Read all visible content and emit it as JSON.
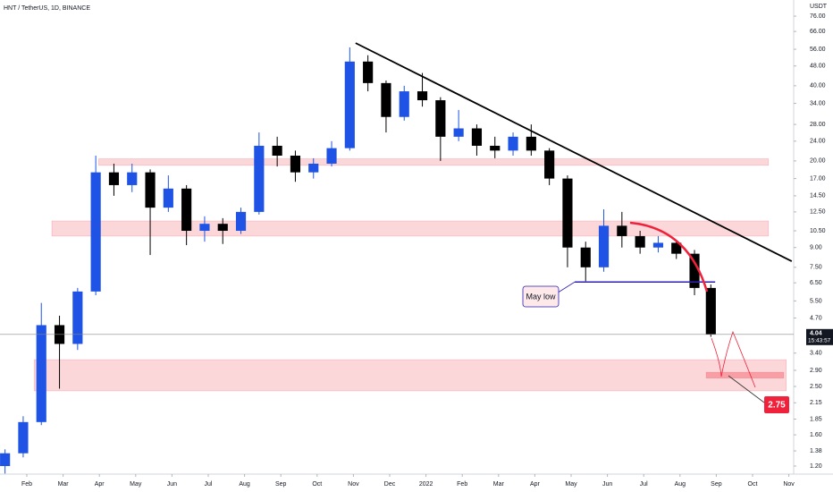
{
  "chart_data": {
    "type": "candlestick",
    "title": "HNT / TetherUS, 1D, BINANCE",
    "y_axis_label": "USDT",
    "log_scale": true,
    "grid": false,
    "up_color": "#1e53e5",
    "down_color": "#000000",
    "xlim": [
      -0.739,
      21.133
    ],
    "xticks": [
      {
        "value": 0,
        "label": "Feb"
      },
      {
        "value": 1,
        "label": "Mar"
      },
      {
        "value": 2,
        "label": "Apr"
      },
      {
        "value": 3,
        "label": "May"
      },
      {
        "value": 4,
        "label": "Jun"
      },
      {
        "value": 5,
        "label": "Jul"
      },
      {
        "value": 6,
        "label": "Aug"
      },
      {
        "value": 7,
        "label": "Sep"
      },
      {
        "value": 8,
        "label": "Oct"
      },
      {
        "value": 9,
        "label": "Nov"
      },
      {
        "value": 10,
        "label": "Dec"
      },
      {
        "value": 11,
        "label": "2022"
      },
      {
        "value": 12,
        "label": "Feb"
      },
      {
        "value": 13,
        "label": "Mar"
      },
      {
        "value": 14,
        "label": "Apr"
      },
      {
        "value": 15,
        "label": "May"
      },
      {
        "value": 16,
        "label": "Jun"
      },
      {
        "value": 17,
        "label": "Jul"
      },
      {
        "value": 18,
        "label": "Aug"
      },
      {
        "value": 19,
        "label": "Sep"
      },
      {
        "value": 20,
        "label": "Oct"
      },
      {
        "value": 21,
        "label": "Nov"
      }
    ],
    "ylim": [
      1.114,
      88.2
    ],
    "yticks": [
      {
        "value": 76,
        "label": "76.00"
      },
      {
        "value": 66,
        "label": "66.00"
      },
      {
        "value": 56,
        "label": "56.00"
      },
      {
        "value": 48,
        "label": "48.00"
      },
      {
        "value": 40,
        "label": "40.00"
      },
      {
        "value": 34,
        "label": "34.00"
      },
      {
        "value": 28,
        "label": "28.00"
      },
      {
        "value": 24,
        "label": "24.00"
      },
      {
        "value": 20,
        "label": "20.00"
      },
      {
        "value": 17,
        "label": "17.00"
      },
      {
        "value": 14.5,
        "label": "14.50"
      },
      {
        "value": 12.5,
        "label": "12.50"
      },
      {
        "value": 10.5,
        "label": "10.50"
      },
      {
        "value": 9,
        "label": "9.00"
      },
      {
        "value": 7.5,
        "label": "7.50"
      },
      {
        "value": 6.5,
        "label": "6.50"
      },
      {
        "value": 5.5,
        "label": "5.50"
      },
      {
        "value": 4.7,
        "label": "4.70"
      },
      {
        "value": 3.4,
        "label": "3.40"
      },
      {
        "value": 2.9,
        "label": "2.90"
      },
      {
        "value": 2.5,
        "label": "2.50"
      },
      {
        "value": 2.15,
        "label": "2.15"
      },
      {
        "value": 1.85,
        "label": "1.85"
      },
      {
        "value": 1.6,
        "label": "1.60"
      },
      {
        "value": 1.38,
        "label": "1.38"
      },
      {
        "value": 1.2,
        "label": "1.20"
      }
    ],
    "last_price": 4.04,
    "countdown": "15:43:57",
    "x": [
      -0.6,
      -0.1,
      0.4,
      0.9,
      1.4,
      1.9,
      2.4,
      2.9,
      3.4,
      3.9,
      4.4,
      4.9,
      5.4,
      5.9,
      6.4,
      6.9,
      7.4,
      7.9,
      8.4,
      8.9,
      9.4,
      9.9,
      10.4,
      10.9,
      11.4,
      11.9,
      12.4,
      12.9,
      13.4,
      13.9,
      14.4,
      14.9,
      15.4,
      15.9,
      16.4,
      16.9,
      17.4,
      17.9,
      18.4,
      18.85
    ],
    "open": [
      1.2,
      1.35,
      1.8,
      4.4,
      3.7,
      6.0,
      18,
      16,
      18,
      13,
      15.5,
      10.5,
      11.2,
      10.5,
      12.5,
      23,
      21,
      18,
      19.5,
      22.5,
      50,
      41,
      30,
      38,
      35,
      25,
      27,
      23,
      22,
      25,
      22,
      17,
      9,
      7.5,
      11,
      10,
      9,
      9.4,
      8.5,
      6.2
    ],
    "high": [
      1.4,
      1.9,
      5.4,
      4.8,
      6.2,
      21,
      19.5,
      19.5,
      18.5,
      17.5,
      16,
      12,
      11.8,
      13,
      26,
      25,
      22,
      20.5,
      24,
      57,
      53,
      42,
      40,
      45,
      36,
      32,
      28,
      25,
      26,
      28,
      22.5,
      17.5,
      9.5,
      12.8,
      12.5,
      10.5,
      10,
      9.6,
      8.8,
      6.4
    ],
    "low": [
      1.12,
      1.3,
      1.75,
      2.45,
      3.5,
      5.8,
      14.5,
      15,
      8.4,
      12.5,
      9.2,
      9.5,
      9.3,
      10.2,
      12.2,
      19,
      16.5,
      17,
      19,
      22,
      38,
      26,
      29,
      33,
      20,
      24,
      21,
      20.5,
      21,
      21,
      16,
      7.5,
      6.6,
      7.2,
      9,
      8.5,
      8.6,
      8.1,
      5.8,
      3.95
    ],
    "close": [
      1.35,
      1.8,
      4.4,
      3.7,
      6.0,
      18,
      16,
      18,
      13,
      15.5,
      10.5,
      11.2,
      10.5,
      12.5,
      23,
      21,
      18,
      19.5,
      22.5,
      50,
      41,
      30,
      38,
      35,
      25,
      27,
      23,
      22,
      25,
      22,
      17,
      9,
      7.5,
      11,
      10,
      9,
      9.4,
      8.5,
      6.2,
      4.04
    ],
    "zones": [
      {
        "x": [
          1.98,
          20.44
        ],
        "y": [
          19.2,
          20.4
        ]
      },
      {
        "x": [
          0.69,
          20.44
        ],
        "y": [
          10.0,
          11.5
        ]
      },
      {
        "x": [
          0.2,
          20.93
        ],
        "y": [
          2.4,
          3.2
        ]
      },
      {
        "x": [
          18.72,
          20.86
        ],
        "y": [
          2.7,
          2.85
        ]
      }
    ],
    "trendline": {
      "x": [
        9.06,
        21.08
      ],
      "y": [
        59.3,
        7.93
      ]
    },
    "level": {
      "x": [
        15.1,
        18.97
      ],
      "y": 6.55
    },
    "annotations": [
      {
        "text": "May low"
      },
      {
        "text": "2.75",
        "value": 2.75
      }
    ]
  }
}
